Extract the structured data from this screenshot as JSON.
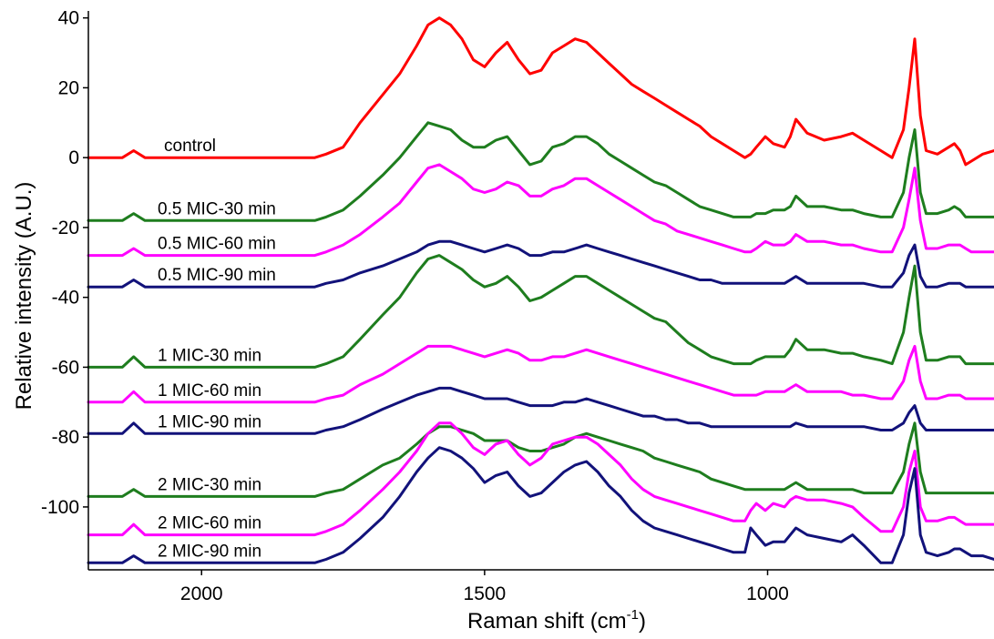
{
  "chart_data": {
    "type": "line",
    "title": "",
    "xlabel": "Raman shift (cm",
    "xlabel_sup": "-1",
    "xlabel_close": ")",
    "ylabel": "Relative intensity (A.U.)",
    "xlim": [
      2200,
      600
    ],
    "ylim": [
      -118,
      42
    ],
    "x_reversed": true,
    "x_ticks": [
      2000,
      1500,
      1000
    ],
    "y_ticks": [
      40,
      20,
      0,
      -20,
      -40,
      -60,
      -80,
      -100
    ],
    "grid": false,
    "x": [
      2200,
      2140,
      2120,
      2100,
      1800,
      1780,
      1750,
      1720,
      1680,
      1650,
      1620,
      1600,
      1580,
      1560,
      1540,
      1520,
      1500,
      1480,
      1460,
      1440,
      1420,
      1400,
      1380,
      1360,
      1340,
      1320,
      1300,
      1280,
      1260,
      1240,
      1220,
      1200,
      1180,
      1160,
      1140,
      1120,
      1100,
      1080,
      1060,
      1040,
      1030,
      1020,
      1004,
      990,
      970,
      960,
      950,
      930,
      900,
      870,
      850,
      830,
      800,
      780,
      760,
      750,
      740,
      730,
      720,
      700,
      680,
      670,
      660,
      650,
      640,
      620,
      600
    ],
    "series": [
      {
        "name": "control",
        "color": "#ff0000",
        "values": [
          0,
          0,
          2,
          0,
          0,
          1,
          3,
          10,
          18,
          24,
          32,
          38,
          40,
          38,
          34,
          28,
          26,
          30,
          33,
          28,
          24,
          25,
          30,
          32,
          34,
          33,
          30,
          27,
          24,
          21,
          19,
          17,
          15,
          13,
          11,
          9,
          6,
          4,
          2,
          0,
          1,
          3,
          6,
          4,
          3,
          6,
          11,
          7,
          5,
          6,
          7,
          5,
          2,
          0,
          8,
          20,
          34,
          12,
          2,
          1,
          3,
          4,
          2,
          -2,
          -1,
          1,
          2
        ]
      },
      {
        "name": "0.5 MIC-30 min",
        "color": "#1e7d1e",
        "values": [
          -18,
          -18,
          -16,
          -18,
          -18,
          -17,
          -15,
          -11,
          -5,
          0,
          6,
          10,
          9,
          8,
          5,
          3,
          3,
          5,
          6,
          2,
          -2,
          -1,
          3,
          4,
          6,
          6,
          4,
          1,
          -1,
          -3,
          -5,
          -7,
          -8,
          -10,
          -12,
          -14,
          -15,
          -16,
          -17,
          -17,
          -17,
          -16,
          -16,
          -15,
          -15,
          -14,
          -11,
          -14,
          -14,
          -15,
          -15,
          -16,
          -17,
          -17,
          -10,
          0,
          8,
          -10,
          -16,
          -16,
          -15,
          -14,
          -15,
          -17,
          -17,
          -17,
          -17
        ]
      },
      {
        "name": "0.5 MIC-60 min",
        "color": "#ff00ff",
        "values": [
          -28,
          -28,
          -26,
          -28,
          -28,
          -27,
          -25,
          -22,
          -17,
          -13,
          -7,
          -3,
          -2,
          -4,
          -6,
          -9,
          -10,
          -9,
          -7,
          -8,
          -11,
          -11,
          -9,
          -8,
          -6,
          -6,
          -8,
          -10,
          -12,
          -14,
          -16,
          -18,
          -19,
          -21,
          -22,
          -23,
          -24,
          -25,
          -26,
          -27,
          -27,
          -26,
          -24,
          -25,
          -25,
          -24,
          -22,
          -24,
          -24,
          -25,
          -25,
          -26,
          -27,
          -27,
          -20,
          -12,
          -3,
          -18,
          -26,
          -26,
          -25,
          -25,
          -25,
          -26,
          -27,
          -27,
          -27
        ]
      },
      {
        "name": "0.5 MIC-90 min",
        "color": "#12127a",
        "values": [
          -37,
          -37,
          -35,
          -37,
          -37,
          -36,
          -35,
          -33,
          -31,
          -29,
          -27,
          -25,
          -24,
          -24,
          -25,
          -26,
          -27,
          -26,
          -25,
          -26,
          -28,
          -28,
          -27,
          -27,
          -26,
          -25,
          -26,
          -27,
          -28,
          -29,
          -30,
          -31,
          -32,
          -33,
          -34,
          -35,
          -35,
          -36,
          -36,
          -36,
          -36,
          -36,
          -36,
          -36,
          -36,
          -35,
          -34,
          -36,
          -36,
          -36,
          -36,
          -36,
          -37,
          -37,
          -33,
          -28,
          -25,
          -34,
          -37,
          -37,
          -36,
          -36,
          -36,
          -37,
          -37,
          -37,
          -37
        ]
      },
      {
        "name": "1 MIC-30 min",
        "color": "#1e7d1e",
        "values": [
          -60,
          -60,
          -57,
          -60,
          -60,
          -59,
          -57,
          -52,
          -45,
          -40,
          -33,
          -29,
          -28,
          -30,
          -32,
          -35,
          -37,
          -36,
          -34,
          -37,
          -41,
          -40,
          -38,
          -36,
          -34,
          -34,
          -36,
          -38,
          -40,
          -42,
          -44,
          -46,
          -47,
          -50,
          -53,
          -55,
          -57,
          -58,
          -59,
          -59,
          -59,
          -58,
          -57,
          -57,
          -57,
          -55,
          -52,
          -55,
          -55,
          -56,
          -56,
          -57,
          -58,
          -59,
          -50,
          -40,
          -31,
          -50,
          -58,
          -58,
          -57,
          -57,
          -57,
          -59,
          -59,
          -59,
          -59
        ]
      },
      {
        "name": "1 MIC-60 min",
        "color": "#ff00ff",
        "values": [
          -70,
          -70,
          -67,
          -70,
          -70,
          -69,
          -68,
          -65,
          -62,
          -59,
          -56,
          -54,
          -54,
          -54,
          -55,
          -56,
          -57,
          -56,
          -55,
          -56,
          -58,
          -58,
          -57,
          -57,
          -56,
          -55,
          -56,
          -57,
          -58,
          -59,
          -60,
          -61,
          -62,
          -63,
          -64,
          -65,
          -66,
          -67,
          -68,
          -68,
          -68,
          -68,
          -67,
          -67,
          -67,
          -66,
          -65,
          -67,
          -67,
          -67,
          -68,
          -68,
          -69,
          -69,
          -64,
          -58,
          -54,
          -64,
          -69,
          -69,
          -68,
          -68,
          -68,
          -69,
          -69,
          -69,
          -69
        ]
      },
      {
        "name": "1 MIC-90 min",
        "color": "#12127a",
        "values": [
          -79,
          -79,
          -76,
          -79,
          -79,
          -78,
          -77,
          -75,
          -72,
          -70,
          -68,
          -67,
          -66,
          -66,
          -67,
          -68,
          -69,
          -69,
          -69,
          -70,
          -71,
          -71,
          -71,
          -70,
          -70,
          -69,
          -70,
          -71,
          -72,
          -73,
          -74,
          -74,
          -75,
          -75,
          -76,
          -76,
          -77,
          -77,
          -77,
          -77,
          -77,
          -77,
          -77,
          -77,
          -77,
          -77,
          -76,
          -77,
          -77,
          -77,
          -77,
          -77,
          -78,
          -78,
          -76,
          -73,
          -71,
          -76,
          -78,
          -78,
          -78,
          -78,
          -78,
          -78,
          -78,
          -78,
          -78
        ]
      },
      {
        "name": "2 MIC-30 min",
        "color": "#1e7d1e",
        "values": [
          -97,
          -97,
          -95,
          -97,
          -97,
          -96,
          -95,
          -92,
          -88,
          -86,
          -82,
          -79,
          -77,
          -77,
          -78,
          -79,
          -81,
          -81,
          -81,
          -83,
          -84,
          -84,
          -83,
          -82,
          -80,
          -79,
          -80,
          -81,
          -82,
          -83,
          -84,
          -86,
          -87,
          -88,
          -89,
          -90,
          -92,
          -93,
          -94,
          -95,
          -95,
          -95,
          -95,
          -95,
          -95,
          -94,
          -93,
          -95,
          -95,
          -95,
          -95,
          -96,
          -96,
          -96,
          -90,
          -82,
          -76,
          -90,
          -96,
          -96,
          -96,
          -96,
          -96,
          -96,
          -96,
          -96,
          -96
        ]
      },
      {
        "name": "2 MIC-60 min",
        "color": "#ff00ff",
        "values": [
          -108,
          -108,
          -105,
          -108,
          -108,
          -107,
          -105,
          -101,
          -95,
          -90,
          -84,
          -79,
          -76,
          -76,
          -79,
          -83,
          -85,
          -82,
          -81,
          -85,
          -88,
          -86,
          -82,
          -81,
          -80,
          -80,
          -82,
          -85,
          -88,
          -92,
          -95,
          -97,
          -98,
          -99,
          -100,
          -101,
          -102,
          -103,
          -104,
          -104,
          -101,
          -99,
          -101,
          -99,
          -100,
          -98,
          -97,
          -98,
          -98,
          -99,
          -100,
          -103,
          -107,
          -107,
          -100,
          -90,
          -84,
          -100,
          -104,
          -104,
          -103,
          -103,
          -104,
          -105,
          -105,
          -105,
          -105
        ]
      },
      {
        "name": "2 MIC-90 min",
        "color": "#12127a",
        "values": [
          -116,
          -116,
          -114,
          -116,
          -116,
          -115,
          -113,
          -109,
          -103,
          -97,
          -90,
          -86,
          -83,
          -84,
          -86,
          -89,
          -93,
          -91,
          -90,
          -94,
          -97,
          -96,
          -93,
          -90,
          -88,
          -87,
          -90,
          -94,
          -97,
          -101,
          -104,
          -106,
          -107,
          -108,
          -109,
          -110,
          -111,
          -112,
          -113,
          -113,
          -106,
          -108,
          -111,
          -110,
          -110,
          -108,
          -106,
          -108,
          -109,
          -110,
          -108,
          -111,
          -116,
          -116,
          -108,
          -96,
          -89,
          -108,
          -113,
          -114,
          -113,
          -112,
          -112,
          -113,
          -114,
          -114,
          -115
        ]
      }
    ]
  }
}
